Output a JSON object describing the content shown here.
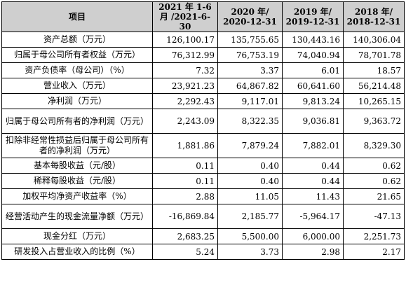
{
  "table": {
    "headers": [
      "项目",
      "2021 年 1-6 月 /2021-6-30",
      "2020 年/ 2020-12-31",
      "2019 年/ 2019-12-31",
      "2018 年/ 2018-12-31"
    ],
    "rows": [
      {
        "label": "资产总额（万元）",
        "values": [
          "126,100.17",
          "135,755.65",
          "130,443.16",
          "140,306.04"
        ]
      },
      {
        "label": "归属于母公司所有者权益（万元）",
        "values": [
          "76,312.99",
          "76,753.19",
          "74,040.94",
          "78,701.78"
        ]
      },
      {
        "label": "资产负债率（母公司）（%）",
        "values": [
          "7.32",
          "3.37",
          "6.01",
          "18.57"
        ]
      },
      {
        "label": "营业收入（万元）",
        "values": [
          "23,921.23",
          "64,867.82",
          "60,641.60",
          "56,214.48"
        ]
      },
      {
        "label": "净利润（万元）",
        "values": [
          "2,292.43",
          "9,117.01",
          "9,813.24",
          "10,265.15"
        ]
      },
      {
        "label": "归属于母公司所有者的净利润（万元）",
        "values": [
          "2,243.09",
          "8,322.35",
          "9,036.81",
          "9,363.72"
        ]
      },
      {
        "label": "扣除非经常性损益后归属于母公司所有者的净利润（万元）",
        "values": [
          "1,881.86",
          "7,879.24",
          "7,882.01",
          "8,329.30"
        ]
      },
      {
        "label": "基本每股收益（元/股）",
        "values": [
          "0.11",
          "0.40",
          "0.44",
          "0.62"
        ]
      },
      {
        "label": "稀释每股收益（元/股）",
        "values": [
          "0.11",
          "0.40",
          "0.44",
          "0.62"
        ]
      },
      {
        "label": "加权平均净资产收益率（%）",
        "values": [
          "2.88",
          "11.05",
          "11.43",
          "21.65"
        ]
      },
      {
        "label": "经营活动产生的现金流量净额（万元）",
        "values": [
          "-16,869.84",
          "2,185.77",
          "-5,964.17",
          "-47.13"
        ]
      },
      {
        "label": "现金分红（万元）",
        "values": [
          "2,683.25",
          "5,500.00",
          "6,000.00",
          "2,251.73"
        ]
      },
      {
        "label": "研发投入占营业收入的比例（%）",
        "values": [
          "5.24",
          "3.73",
          "2.98",
          "2.17"
        ]
      }
    ]
  }
}
